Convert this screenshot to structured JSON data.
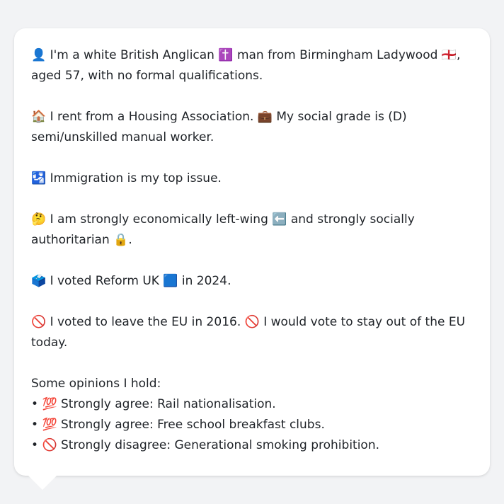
{
  "message": {
    "p1": {
      "icon1": "👤",
      "text1": " I'm a white British Anglican ",
      "icon2": "✝️",
      "text2": " man from Birmingham Ladywood ",
      "icon3": "🏴󠁧󠁢󠁥󠁮󠁧󠁿",
      "text3": ", aged 57, with no formal qualifications."
    },
    "p2": {
      "icon1": "🏠",
      "text1": " I rent from a Housing Association. ",
      "icon2": "💼",
      "text2": " My social grade is (D) semi/unskilled manual worker."
    },
    "p3": {
      "icon1": "🛂",
      "text1": " Immigration is my top issue."
    },
    "p4": {
      "icon1": "🤔",
      "text1": " I am strongly economically left-wing ",
      "icon2": "⬅️",
      "text2": " and strongly socially authoritarian ",
      "icon3": "🔒",
      "text3": "."
    },
    "p5": {
      "icon1": "🗳️",
      "text1": " I voted Reform UK ",
      "icon2": "🟦",
      "text2": " in 2024."
    },
    "p6": {
      "icon1": "🚫",
      "text1": " I voted to leave the EU in 2016. ",
      "icon2": "🚫",
      "text2": " I would vote to stay out of the EU today."
    },
    "opinions": {
      "heading": "Some opinions I hold:",
      "items": [
        {
          "bullet": "• ",
          "icon": "💯",
          "text": " Strongly agree: Rail nationalisation."
        },
        {
          "bullet": "• ",
          "icon": "💯",
          "text": " Strongly agree: Free school breakfast clubs."
        },
        {
          "bullet": "• ",
          "icon": "🚫",
          "text": " Strongly disagree: Generational smoking prohibition."
        }
      ]
    }
  }
}
